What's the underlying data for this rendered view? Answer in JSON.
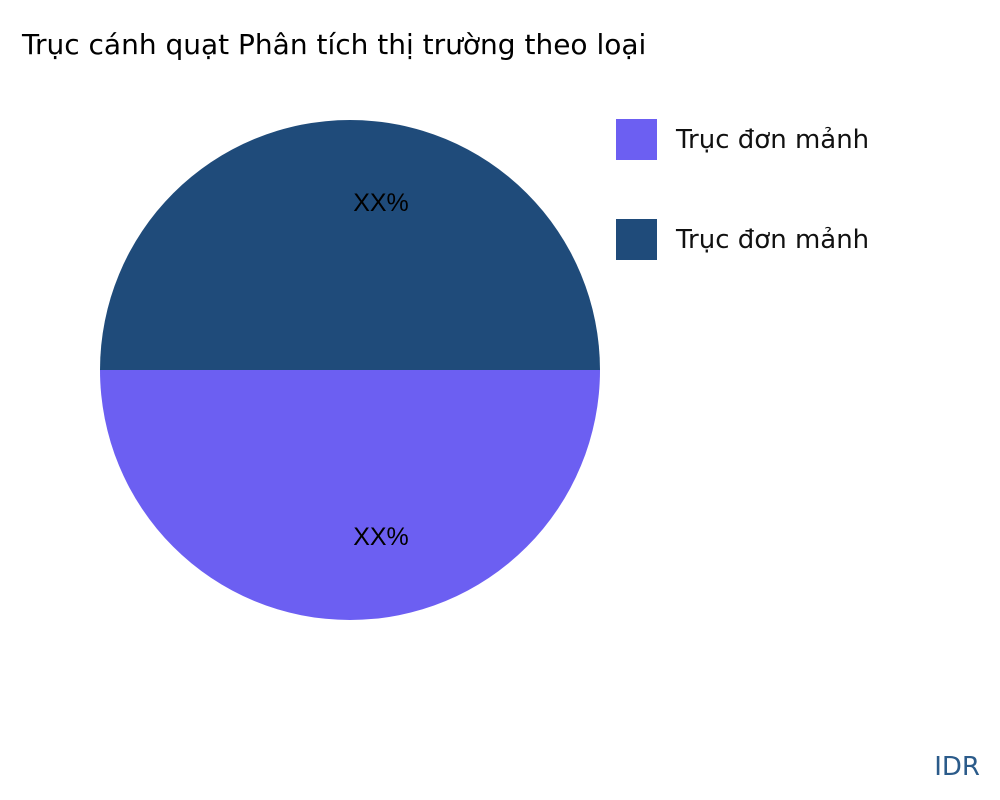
{
  "chart_data": {
    "type": "pie",
    "title": "Trục cánh quạt Phân tích thị trường theo loại",
    "slices": [
      {
        "name": "Trục đơn mảnh",
        "value": 50,
        "label": "XX%",
        "color": "#6c5ff2"
      },
      {
        "name": "Trục đơn mảnh",
        "value": 50,
        "label": "XX%",
        "color": "#1f4b7a"
      }
    ],
    "legend_position": "right"
  },
  "watermark": "IDR"
}
